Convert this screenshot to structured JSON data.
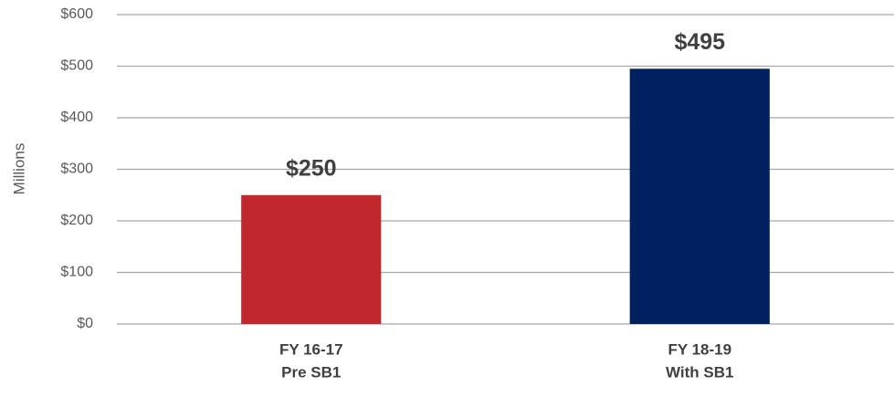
{
  "chart_data": {
    "type": "bar",
    "y_label": "Millions",
    "categories": [
      [
        "FY 16-17",
        "Pre SB1"
      ],
      [
        "FY 18-19",
        "With SB1"
      ]
    ],
    "values": [
      250,
      495
    ],
    "value_labels": [
      "$250",
      "$495"
    ],
    "colors": [
      "#c0282d",
      "#002060"
    ],
    "ylim": [
      0,
      600
    ],
    "yticks": [
      {
        "value": 0,
        "label": "$0"
      },
      {
        "value": 100,
        "label": "$100"
      },
      {
        "value": 200,
        "label": "$200"
      },
      {
        "value": 300,
        "label": "$300"
      },
      {
        "value": 400,
        "label": "$400"
      },
      {
        "value": 500,
        "label": "$500"
      },
      {
        "value": 600,
        "label": "$600"
      }
    ],
    "grid": true
  }
}
